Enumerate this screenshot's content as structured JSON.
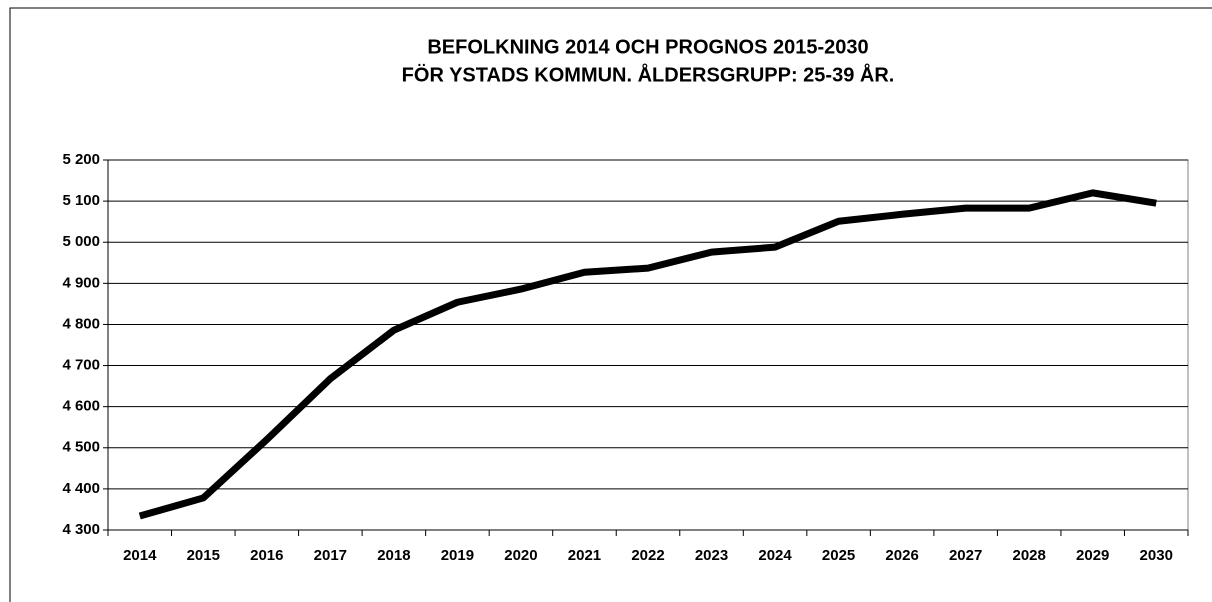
{
  "chart_data": {
    "type": "line",
    "title": [
      "BEFOLKNING 2014 OCH PROGNOS 2015-2030",
      "FÖR YSTADS KOMMUN. ÅLDERSGRUPP: 25-39 ÅR."
    ],
    "categories": [
      "2014",
      "2015",
      "2016",
      "2017",
      "2018",
      "2019",
      "2020",
      "2021",
      "2022",
      "2023",
      "2024",
      "2025",
      "2026",
      "2027",
      "2028",
      "2029",
      "2030"
    ],
    "series": [
      {
        "color": "#000000",
        "values": [
          4334,
          4378,
          4520,
          4668,
          4786,
          4854,
          4886,
          4927,
          4937,
          4976,
          4988,
          5051,
          5068,
          5083,
          5083,
          5120,
          5095
        ]
      }
    ],
    "ylim": [
      4300,
      5200
    ],
    "yticks": [
      {
        "value": 4300,
        "label": "4 300"
      },
      {
        "value": 4400,
        "label": "4 400"
      },
      {
        "value": 4500,
        "label": "4 500"
      },
      {
        "value": 4600,
        "label": "4 600"
      },
      {
        "value": 4700,
        "label": "4 700"
      },
      {
        "value": 4800,
        "label": "4 800"
      },
      {
        "value": 4900,
        "label": "4 900"
      },
      {
        "value": 5000,
        "label": "5 000"
      },
      {
        "value": 5100,
        "label": "5 100"
      },
      {
        "value": 5200,
        "label": "5 200"
      }
    ],
    "grid": true
  }
}
